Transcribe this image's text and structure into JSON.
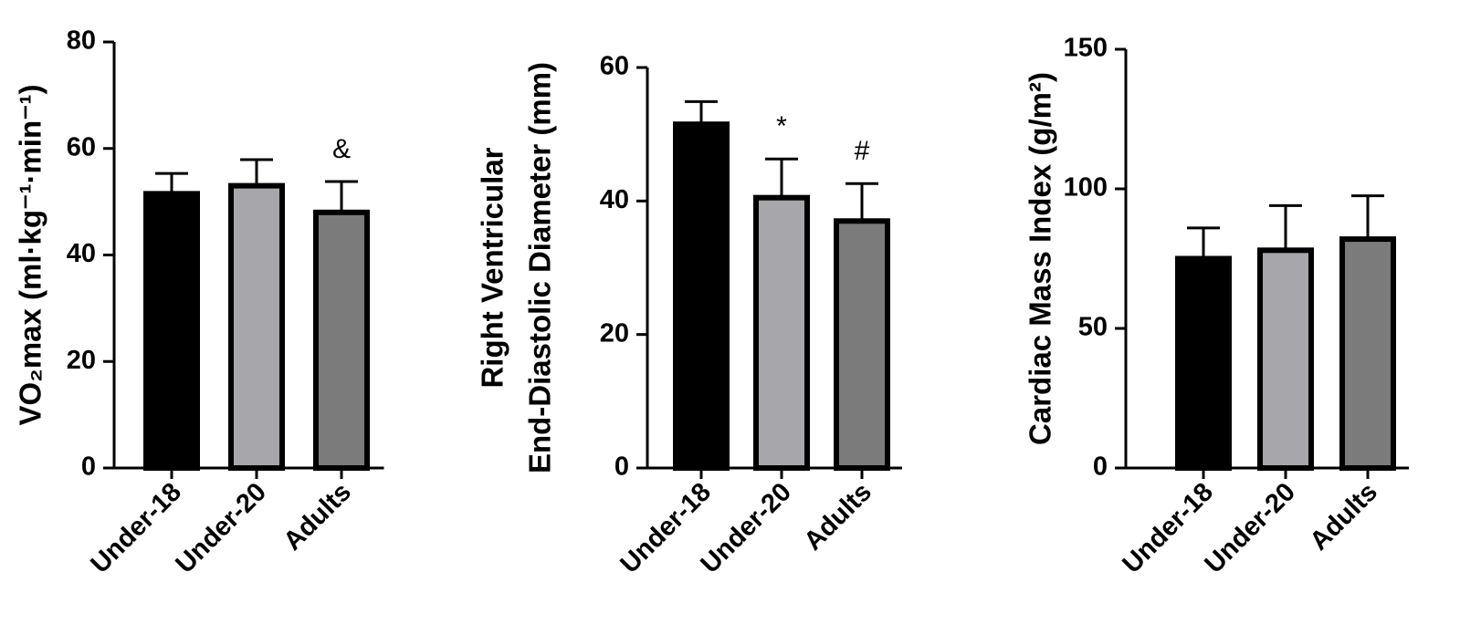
{
  "chart_data": [
    {
      "type": "bar",
      "ylabel": [
        "VO₂max (ml·kg⁻¹·min⁻¹)"
      ],
      "categories": [
        "Under-18",
        "Under-20",
        "Adults"
      ],
      "values": [
        51.5,
        53,
        48
      ],
      "errors": [
        3.8,
        4.9,
        5.8
      ],
      "colors": [
        "#000000",
        "#a7a6ab",
        "#7b7b7b"
      ],
      "annotations": [
        null,
        null,
        "&"
      ],
      "ylim": [
        0,
        80
      ],
      "yticks": [
        0,
        20,
        40,
        60,
        80
      ]
    },
    {
      "type": "bar",
      "ylabel": [
        "Right Ventricular",
        "End-Diastolic Diameter (mm)"
      ],
      "categories": [
        "Under-18",
        "Under-20",
        "Adults"
      ],
      "values": [
        51.5,
        40.5,
        37
      ],
      "errors": [
        3.4,
        5.8,
        5.6
      ],
      "colors": [
        "#000000",
        "#a7a6ab",
        "#7b7b7b"
      ],
      "annotations": [
        null,
        "*",
        "#"
      ],
      "ylim": [
        0,
        60
      ],
      "yticks": [
        0,
        20,
        40,
        60
      ]
    },
    {
      "type": "bar",
      "ylabel": [
        "Cardiac Mass Index (g/m²)"
      ],
      "categories": [
        "Under-18",
        "Under-20",
        "Adults"
      ],
      "values": [
        75,
        78,
        82
      ],
      "errors": [
        11,
        16,
        15.5
      ],
      "colors": [
        "#000000",
        "#a7a6ab",
        "#7b7b7b"
      ],
      "annotations": [
        null,
        null,
        null
      ],
      "ylim": [
        0,
        150
      ],
      "yticks": [
        0,
        50,
        100,
        150
      ]
    }
  ]
}
